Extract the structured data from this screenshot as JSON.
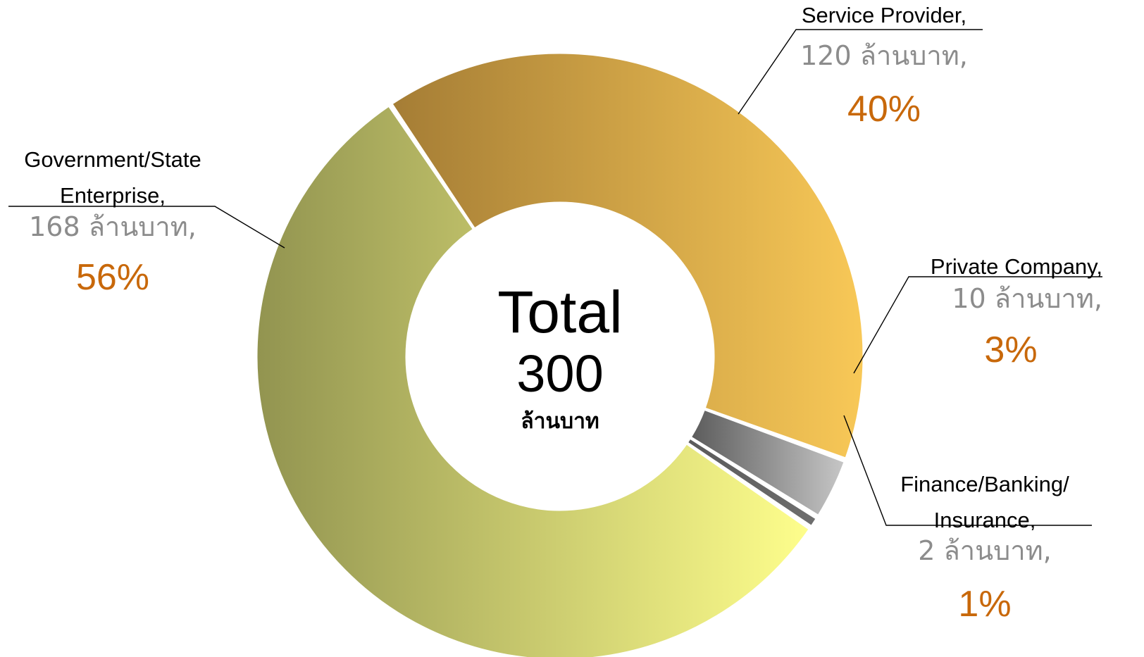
{
  "chart_data": {
    "type": "pie",
    "variant": "donut",
    "center": {
      "title": "Total",
      "value": "300",
      "unit": "ล้านบาท"
    },
    "slices": [
      {
        "name": "Service Provider,",
        "name_lines": [
          "Service Provider,"
        ],
        "value": 120,
        "value_label": "120 ล้านบาท,",
        "percent_label": "40%",
        "color_start": "#a57d35",
        "color_end": "#f8c857"
      },
      {
        "name": "Private Company,",
        "name_lines": [
          "Private Company,"
        ],
        "value": 10,
        "value_label": "10 ล้านบาท,",
        "percent_label": "3%",
        "color_start": "#5c5c5c",
        "color_end": "#c6c6c6"
      },
      {
        "name": "Finance/Banking/ Insurance,",
        "name_lines": [
          "Finance/Banking/",
          "Insurance,"
        ],
        "value": 2,
        "value_label": "2 ล้านบาท,",
        "percent_label": "1%",
        "color_start": "#5a5a5a",
        "color_end": "#6e6e6e"
      },
      {
        "name": "Government/State Enterprise,",
        "name_lines": [
          "Government/State",
          "Enterprise,"
        ],
        "value": 168,
        "value_label": "168 ล้านบาท,",
        "percent_label": "56%",
        "color_start": "#929450",
        "color_end": "#fefe8c"
      }
    ]
  }
}
